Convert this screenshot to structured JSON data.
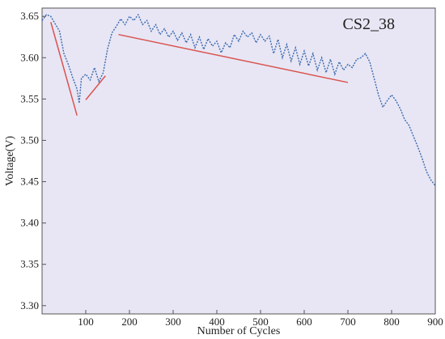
{
  "chart_data": {
    "type": "line",
    "title": "CS2_38",
    "xlabel": "Number of Cycles",
    "ylabel": "Voltage(V)",
    "xlim": [
      0,
      900
    ],
    "ylim": [
      3.29,
      3.66
    ],
    "xticks": [
      100,
      200,
      300,
      400,
      500,
      600,
      700,
      800,
      900
    ],
    "yticks": [
      3.3,
      3.35,
      3.4,
      3.45,
      3.5,
      3.55,
      3.6,
      3.65
    ],
    "x_tick_labels": [
      "100",
      "200",
      "300",
      "400",
      "500",
      "600",
      "700",
      "800",
      "900"
    ],
    "y_tick_labels": [
      "3.30",
      "3.35",
      "3.40",
      "3.45",
      "3.50",
      "3.55",
      "3.60",
      "3.65"
    ],
    "grid": false,
    "plot_background": "#e8e6f4",
    "series": [
      {
        "style": "dotted",
        "color": "#3a6ab0",
        "points": [
          [
            0,
            3.645
          ],
          [
            10,
            3.652
          ],
          [
            20,
            3.65
          ],
          [
            30,
            3.641
          ],
          [
            40,
            3.632
          ],
          [
            50,
            3.605
          ],
          [
            60,
            3.592
          ],
          [
            70,
            3.576
          ],
          [
            80,
            3.562
          ],
          [
            85,
            3.545
          ],
          [
            90,
            3.575
          ],
          [
            100,
            3.58
          ],
          [
            110,
            3.573
          ],
          [
            120,
            3.588
          ],
          [
            130,
            3.571
          ],
          [
            140,
            3.582
          ],
          [
            150,
            3.611
          ],
          [
            160,
            3.63
          ],
          [
            170,
            3.638
          ],
          [
            180,
            3.647
          ],
          [
            190,
            3.64
          ],
          [
            200,
            3.65
          ],
          [
            210,
            3.645
          ],
          [
            220,
            3.652
          ],
          [
            230,
            3.64
          ],
          [
            240,
            3.645
          ],
          [
            250,
            3.632
          ],
          [
            260,
            3.64
          ],
          [
            270,
            3.628
          ],
          [
            280,
            3.635
          ],
          [
            290,
            3.625
          ],
          [
            300,
            3.632
          ],
          [
            310,
            3.621
          ],
          [
            320,
            3.63
          ],
          [
            330,
            3.618
          ],
          [
            340,
            3.628
          ],
          [
            350,
            3.612
          ],
          [
            360,
            3.625
          ],
          [
            370,
            3.61
          ],
          [
            380,
            3.623
          ],
          [
            390,
            3.614
          ],
          [
            400,
            3.62
          ],
          [
            410,
            3.606
          ],
          [
            420,
            3.618
          ],
          [
            430,
            3.612
          ],
          [
            440,
            3.628
          ],
          [
            450,
            3.62
          ],
          [
            460,
            3.632
          ],
          [
            470,
            3.625
          ],
          [
            480,
            3.63
          ],
          [
            490,
            3.618
          ],
          [
            500,
            3.628
          ],
          [
            510,
            3.62
          ],
          [
            520,
            3.626
          ],
          [
            530,
            3.605
          ],
          [
            540,
            3.622
          ],
          [
            550,
            3.6
          ],
          [
            560,
            3.616
          ],
          [
            570,
            3.596
          ],
          [
            580,
            3.612
          ],
          [
            590,
            3.592
          ],
          [
            600,
            3.608
          ],
          [
            610,
            3.59
          ],
          [
            620,
            3.605
          ],
          [
            630,
            3.585
          ],
          [
            640,
            3.6
          ],
          [
            650,
            3.582
          ],
          [
            660,
            3.598
          ],
          [
            670,
            3.58
          ],
          [
            680,
            3.595
          ],
          [
            690,
            3.585
          ],
          [
            700,
            3.592
          ],
          [
            710,
            3.588
          ],
          [
            720,
            3.598
          ],
          [
            730,
            3.6
          ],
          [
            740,
            3.605
          ],
          [
            750,
            3.595
          ],
          [
            760,
            3.575
          ],
          [
            770,
            3.555
          ],
          [
            780,
            3.54
          ],
          [
            790,
            3.548
          ],
          [
            800,
            3.555
          ],
          [
            810,
            3.548
          ],
          [
            820,
            3.538
          ],
          [
            830,
            3.525
          ],
          [
            840,
            3.518
          ],
          [
            850,
            3.505
          ],
          [
            860,
            3.492
          ],
          [
            870,
            3.478
          ],
          [
            880,
            3.462
          ],
          [
            890,
            3.452
          ],
          [
            900,
            3.445
          ]
        ]
      }
    ],
    "trend_lines": [
      {
        "color": "#d9534f",
        "points": [
          [
            20,
            3.643
          ],
          [
            80,
            3.53
          ]
        ]
      },
      {
        "color": "#d9534f",
        "points": [
          [
            100,
            3.549
          ],
          [
            145,
            3.578
          ]
        ]
      },
      {
        "color": "#d9534f",
        "points": [
          [
            175,
            3.628
          ],
          [
            700,
            3.57
          ]
        ]
      }
    ]
  }
}
